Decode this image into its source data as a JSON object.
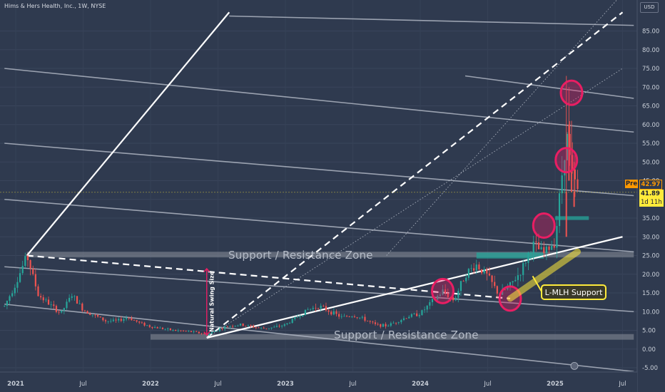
{
  "header": {
    "title": "Hims & Hers Health, Inc., 1W, NYSE",
    "currency": "USD"
  },
  "annotations": {
    "zone_upper": "Support / Resistance Zone",
    "zone_lower": "Support / Resistance Zone",
    "swing": "Natural Swing Size",
    "callout": "L-MLH Support"
  },
  "price_tags": {
    "pre_label": "Pre",
    "pre_value": "42.97",
    "last_value": "41.89",
    "countdown": "1d 11h"
  },
  "colors": {
    "background": "#2f3a4f",
    "up": "#26a69a",
    "down": "#ef5350",
    "circle": "#e91e63",
    "zone": "#8a909b",
    "teal_zone": "#26a69a",
    "callout": "#ffeb3b",
    "pre_tag": "#ff9800"
  },
  "chart_data": {
    "type": "candlestick",
    "symbol": "HIMS",
    "interval": "1W",
    "y_axis": {
      "min": -5,
      "max": 85,
      "step": 5,
      "labels": [
        "85.00",
        "80.00",
        "75.00",
        "70.00",
        "65.00",
        "60.00",
        "55.00",
        "50.00",
        "45.00",
        "40.00",
        "35.00",
        "30.00",
        "25.00",
        "20.00",
        "15.00",
        "10.00",
        "5.00",
        "0.00",
        "-5.00"
      ]
    },
    "x_axis": {
      "range": [
        "2020-12",
        "2025-08"
      ],
      "ticks": [
        {
          "date": "2021-01",
          "label": "2021"
        },
        {
          "date": "2021-07",
          "label": "Jul"
        },
        {
          "date": "2022-01",
          "label": "2022"
        },
        {
          "date": "2022-07",
          "label": "Jul"
        },
        {
          "date": "2023-01",
          "label": "2023"
        },
        {
          "date": "2023-07",
          "label": "Jul"
        },
        {
          "date": "2024-01",
          "label": "2024"
        },
        {
          "date": "2024-07",
          "label": "Jul"
        },
        {
          "date": "2025-01",
          "label": "2025"
        },
        {
          "date": "2025-07",
          "label": "Jul"
        }
      ]
    },
    "price_anchors": [
      {
        "t": "2020-12",
        "p": 11.5
      },
      {
        "t": "2021-01",
        "p": 17.5
      },
      {
        "t": "2021-02",
        "p": 25.0
      },
      {
        "t": "2021-03",
        "p": 14.5
      },
      {
        "t": "2021-04",
        "p": 12.0
      },
      {
        "t": "2021-05",
        "p": 9.5
      },
      {
        "t": "2021-06",
        "p": 14.5
      },
      {
        "t": "2021-07",
        "p": 10.5
      },
      {
        "t": "2021-08",
        "p": 9.0
      },
      {
        "t": "2021-09",
        "p": 7.5
      },
      {
        "t": "2021-10",
        "p": 7.5
      },
      {
        "t": "2021-11",
        "p": 8.5
      },
      {
        "t": "2021-12",
        "p": 7.0
      },
      {
        "t": "2022-01",
        "p": 6.0
      },
      {
        "t": "2022-02",
        "p": 5.5
      },
      {
        "t": "2022-03",
        "p": 5.0
      },
      {
        "t": "2022-04",
        "p": 4.8
      },
      {
        "t": "2022-05",
        "p": 4.5
      },
      {
        "t": "2022-06",
        "p": 3.8
      },
      {
        "t": "2022-07",
        "p": 5.2
      },
      {
        "t": "2022-08",
        "p": 6.2
      },
      {
        "t": "2022-09",
        "p": 6.5
      },
      {
        "t": "2022-10",
        "p": 6.0
      },
      {
        "t": "2022-11",
        "p": 5.5
      },
      {
        "t": "2022-12",
        "p": 5.8
      },
      {
        "t": "2023-01",
        "p": 6.5
      },
      {
        "t": "2023-02",
        "p": 8.5
      },
      {
        "t": "2023-03",
        "p": 10.5
      },
      {
        "t": "2023-04",
        "p": 11.5
      },
      {
        "t": "2023-05",
        "p": 10.0
      },
      {
        "t": "2023-06",
        "p": 8.5
      },
      {
        "t": "2023-07",
        "p": 9.0
      },
      {
        "t": "2023-08",
        "p": 8.0
      },
      {
        "t": "2023-09",
        "p": 6.5
      },
      {
        "t": "2023-10",
        "p": 6.2
      },
      {
        "t": "2023-11",
        "p": 7.5
      },
      {
        "t": "2023-12",
        "p": 8.8
      },
      {
        "t": "2024-01",
        "p": 9.5
      },
      {
        "t": "2024-02",
        "p": 12.5
      },
      {
        "t": "2024-03",
        "p": 15.5
      },
      {
        "t": "2024-04",
        "p": 13.0
      },
      {
        "t": "2024-05",
        "p": 20.0
      },
      {
        "t": "2024-06",
        "p": 22.5
      },
      {
        "t": "2024-07",
        "p": 19.5
      },
      {
        "t": "2024-08",
        "p": 14.5
      },
      {
        "t": "2024-09",
        "p": 17.0
      },
      {
        "t": "2024-10",
        "p": 21.0
      },
      {
        "t": "2024-11",
        "p": 28.0
      },
      {
        "t": "2024-12",
        "p": 25.5
      },
      {
        "t": "2025-01",
        "p": 29.0
      },
      {
        "t": "2025-02",
        "p": 58.0
      },
      {
        "t": "2025-02-15",
        "p": 47.0
      },
      {
        "t": "2025-03",
        "p": 41.89
      }
    ],
    "last_price": 41.89,
    "pre_market_price": 42.97,
    "trendlines": [
      {
        "type": "solid",
        "points": [
          [
            "2021-02",
            25.0
          ],
          [
            "2022-08",
            90.0
          ]
        ]
      },
      {
        "type": "solid",
        "points": [
          [
            "2022-06",
            3.0
          ],
          [
            "2025-07",
            30.0
          ]
        ]
      },
      {
        "type": "dashed",
        "points": [
          [
            "2021-02",
            25.0
          ],
          [
            "2024-09",
            13.5
          ]
        ]
      },
      {
        "type": "dashed",
        "points": [
          [
            "2022-06",
            3.0
          ],
          [
            "2025-07",
            90.0
          ]
        ]
      },
      {
        "type": "dotted",
        "points": [
          [
            "2022-06",
            3.0
          ],
          [
            "2025-07",
            75.0
          ]
        ]
      },
      {
        "type": "dotted",
        "points": [
          [
            "2023-10",
            25.0
          ],
          [
            "2025-07",
            95.0
          ]
        ]
      }
    ],
    "parallel_lines": [
      {
        "type": "solid",
        "points": [
          [
            "2020-12",
            75.0
          ],
          [
            "2025-08",
            58.0
          ]
        ]
      },
      {
        "type": "solid",
        "points": [
          [
            "2020-12",
            55.0
          ],
          [
            "2025-08",
            41.0
          ]
        ]
      },
      {
        "type": "solid",
        "points": [
          [
            "2020-12",
            40.0
          ],
          [
            "2025-08",
            26.0
          ]
        ]
      },
      {
        "type": "solid",
        "points": [
          [
            "2020-12",
            22.0
          ],
          [
            "2025-08",
            10.0
          ]
        ]
      },
      {
        "type": "solid",
        "points": [
          [
            "2020-12",
            12.0
          ],
          [
            "2025-08",
            -6.0
          ]
        ]
      },
      {
        "type": "solid",
        "points": [
          [
            "2022-08",
            89.0
          ],
          [
            "2025-08",
            86.5
          ]
        ]
      },
      {
        "type": "solid",
        "points": [
          [
            "2024-05",
            73.0
          ],
          [
            "2025-08",
            67.0
          ]
        ]
      }
    ],
    "zones": [
      {
        "name": "Support / Resistance Zone",
        "range": [
          24.5,
          26.0
        ],
        "from": "2021-02",
        "to": "2025-08"
      },
      {
        "name": "Support / Resistance Zone",
        "range": [
          2.5,
          4.0
        ],
        "from": "2022-01",
        "to": "2025-08"
      },
      {
        "name": "teal-upper",
        "range": [
          34.5,
          35.5
        ],
        "from": "2025-01",
        "to": "2025-04"
      },
      {
        "name": "teal-lower",
        "range": [
          24.2,
          25.8
        ],
        "from": "2024-06",
        "to": "2024-12"
      }
    ],
    "circled_pivots": [
      {
        "t": "2024-03",
        "p": 15.5
      },
      {
        "t": "2024-09",
        "p": 13.5
      },
      {
        "t": "2024-12",
        "p": 33.0
      },
      {
        "t": "2025-02",
        "p": 50.5
      },
      {
        "t": "2025-02-15",
        "p": 68.5
      }
    ]
  }
}
